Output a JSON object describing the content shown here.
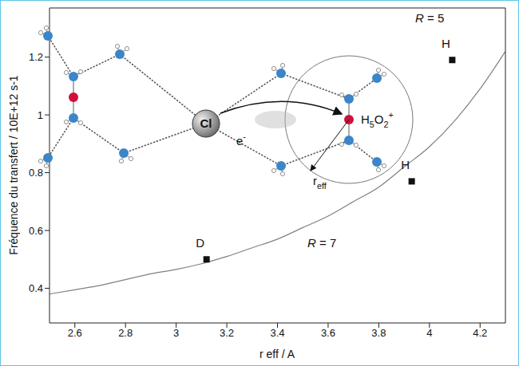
{
  "chart_data": {
    "type": "scatter",
    "x_label": "r eff / A",
    "y_label": "Fréquence du transfert / 10E+12 s-1",
    "xlim": [
      2.5,
      4.3
    ],
    "xticks": [
      2.6,
      2.8,
      3,
      3.2,
      3.4,
      3.6,
      3.8,
      4,
      4.2
    ],
    "ylim": [
      0.28,
      1.37
    ],
    "yticks": [
      0.4,
      0.6,
      0.8,
      1,
      1.2
    ],
    "grid": false,
    "series": [
      {
        "type": "scatter",
        "x": [
          3.12,
          3.93,
          4.09
        ],
        "values": [
          0.5,
          0.77,
          1.19
        ],
        "labels": [
          "D",
          "H",
          "H"
        ],
        "color": "#111111",
        "marker": "square"
      },
      {
        "type": "line",
        "x": [
          2.5,
          2.6,
          2.7,
          2.8,
          2.9,
          3.0,
          3.1,
          3.2,
          3.3,
          3.4,
          3.5,
          3.6,
          3.7,
          3.8,
          3.9,
          4.0,
          4.1,
          4.2,
          4.3
        ],
        "values": [
          0.38,
          0.395,
          0.41,
          0.43,
          0.45,
          0.465,
          0.485,
          0.51,
          0.54,
          0.57,
          0.61,
          0.65,
          0.7,
          0.75,
          0.82,
          0.89,
          0.98,
          1.09,
          1.22
        ],
        "color": "#808080",
        "line_style": "solid"
      }
    ],
    "annotations": [
      {
        "text": "R = 5"
      },
      {
        "text": "R = 7"
      }
    ],
    "diagram": {
      "anion": "Cl",
      "cation": "H5O2+",
      "electron": "e-",
      "radius": "r eff"
    }
  }
}
